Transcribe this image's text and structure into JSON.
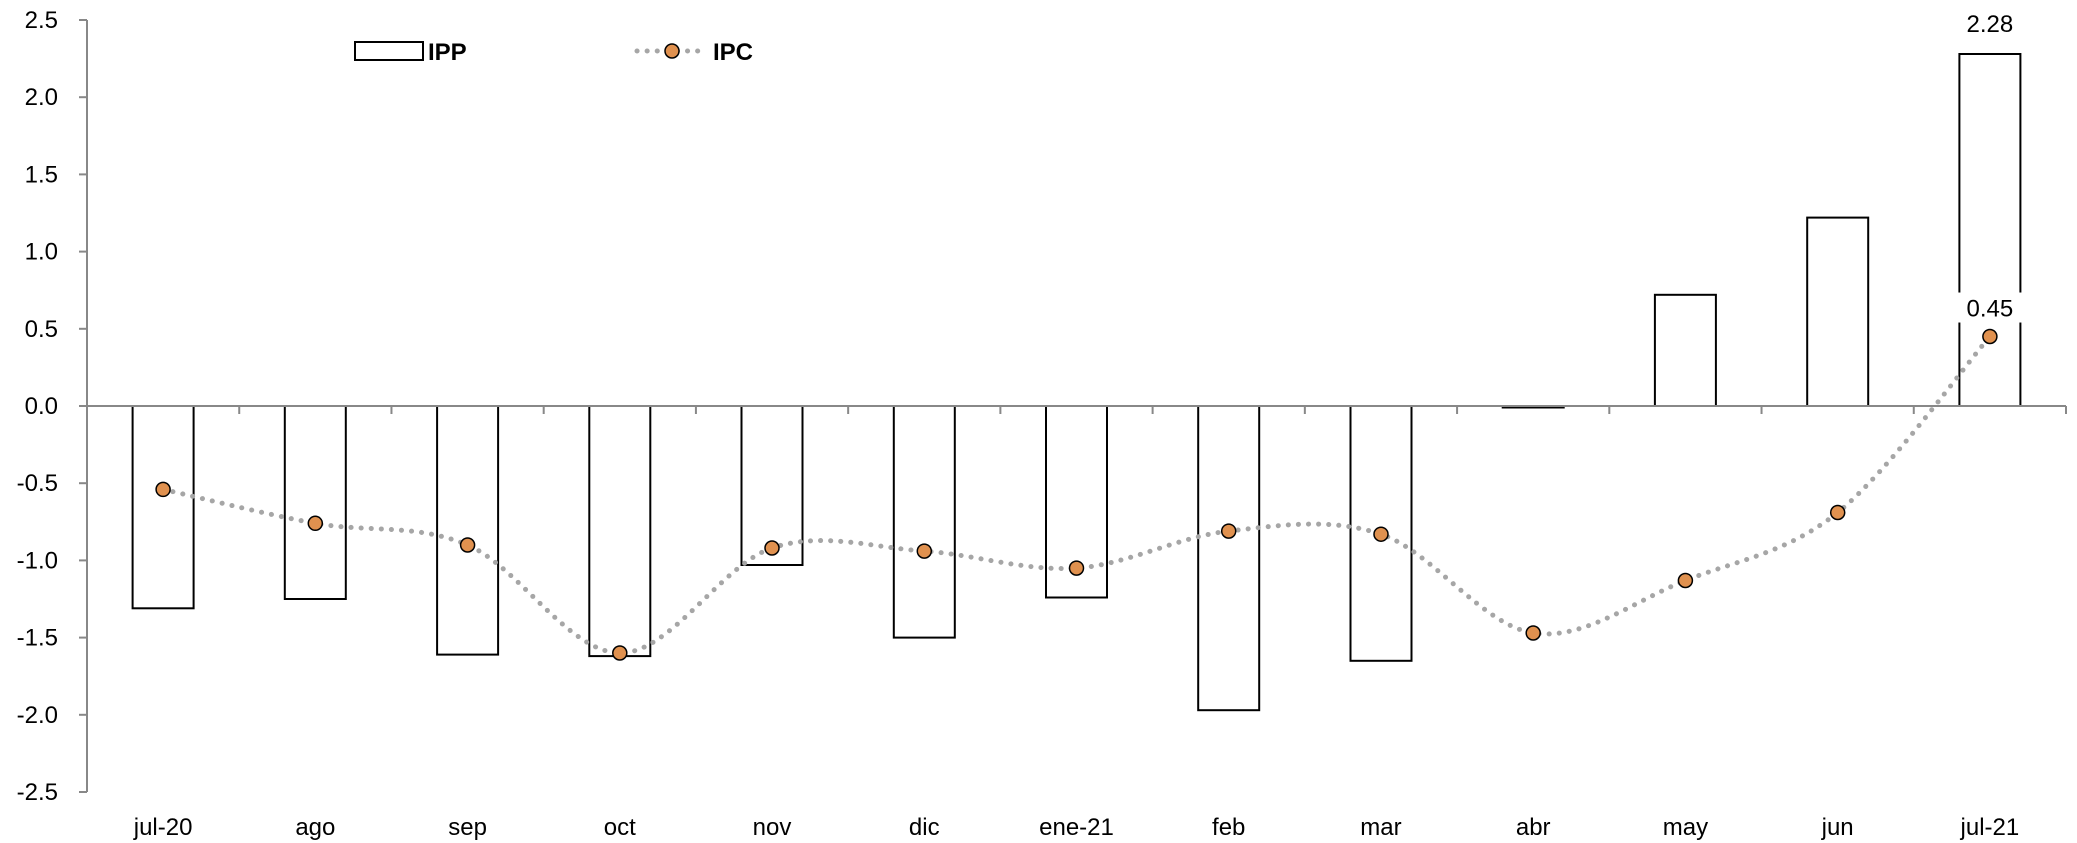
{
  "chart_data": {
    "type": "bar",
    "title": "",
    "xlabel": "",
    "ylabel": "",
    "ylim": [
      -2.5,
      2.5
    ],
    "yticks": [
      2.5,
      2.0,
      1.5,
      1.0,
      0.5,
      0.0,
      -0.5,
      -1.0,
      -1.5,
      -2.0,
      -2.5
    ],
    "ytick_labels": [
      "2.5",
      "2.0",
      "1.5",
      "1.0",
      "0.5",
      "0.0",
      "-0.5",
      "-1.0",
      "-1.5",
      "-2.0",
      "-2.5"
    ],
    "grid": false,
    "legend_position": "top-left",
    "categories": [
      "jul-20",
      "ago",
      "sep",
      "oct",
      "nov",
      "dic",
      "ene-21",
      "feb",
      "mar",
      "abr",
      "may",
      "jun",
      "jul-21"
    ],
    "series": [
      {
        "name": "IPP",
        "type": "bar",
        "values": [
          -1.31,
          -1.25,
          -1.61,
          -1.62,
          -1.03,
          -1.5,
          -1.24,
          -1.97,
          -1.65,
          -0.01,
          0.72,
          1.22,
          2.28
        ],
        "fill": "#ffffff",
        "stroke": "#000000"
      },
      {
        "name": "IPC",
        "type": "line",
        "style": "dotted smooth",
        "values": [
          -0.54,
          -0.76,
          -0.9,
          -1.6,
          -0.92,
          -0.94,
          -1.05,
          -0.81,
          -0.83,
          -1.47,
          -1.13,
          -0.69,
          0.45
        ],
        "line_color": "#a6a6a6",
        "marker_color": "#e0914f",
        "marker_stroke": "#000000"
      }
    ],
    "annotations": [
      {
        "series": "IPP",
        "index": 12,
        "text": "2.28"
      },
      {
        "series": "IPC",
        "index": 12,
        "text": "0.45"
      }
    ]
  }
}
